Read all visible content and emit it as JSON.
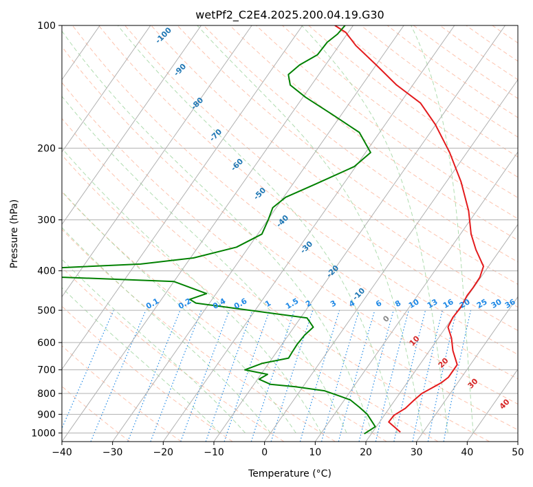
{
  "chart_data": {
    "type": "line",
    "title": "wetPf2_C2E4.2025.200.04.19.G30",
    "xlabel": "Temperature (°C)",
    "ylabel": "Pressure (hPa)",
    "xlim": [
      -40,
      50
    ],
    "ylim": [
      1050,
      100
    ],
    "y_scale": "log",
    "grid": true,
    "x_ticks": [
      "−40",
      "−30",
      "−20",
      "−10",
      "0",
      "10",
      "20",
      "30",
      "40",
      "50"
    ],
    "y_ticks": [
      "100",
      "200",
      "300",
      "400",
      "500",
      "600",
      "700",
      "800",
      "900",
      "1000"
    ],
    "series": [
      {
        "id": "temperature",
        "color": "#e31a1c",
        "points": [
          {
            "t": 25.5,
            "p": 995
          },
          {
            "t": 21.8,
            "p": 940
          },
          {
            "t": 21.9,
            "p": 905
          },
          {
            "t": 23.2,
            "p": 870
          },
          {
            "t": 23.8,
            "p": 830
          },
          {
            "t": 24.4,
            "p": 800
          },
          {
            "t": 25.4,
            "p": 780
          },
          {
            "t": 26.8,
            "p": 752
          },
          {
            "t": 27.4,
            "p": 730
          },
          {
            "t": 27.4,
            "p": 705
          },
          {
            "t": 27.4,
            "p": 680
          },
          {
            "t": 24.6,
            "p": 628
          },
          {
            "t": 22.6,
            "p": 585
          },
          {
            "t": 20.4,
            "p": 550
          },
          {
            "t": 20.0,
            "p": 520
          },
          {
            "t": 20.2,
            "p": 490
          },
          {
            "t": 19.8,
            "p": 460
          },
          {
            "t": 19.9,
            "p": 440
          },
          {
            "t": 19.8,
            "p": 415
          },
          {
            "t": 19.0,
            "p": 390
          },
          {
            "t": 15.2,
            "p": 355
          },
          {
            "t": 12.1,
            "p": 325
          },
          {
            "t": 8.4,
            "p": 285
          },
          {
            "t": 2.9,
            "p": 242
          },
          {
            "t": -3.4,
            "p": 205
          },
          {
            "t": -10.1,
            "p": 175
          },
          {
            "t": -16.0,
            "p": 155
          },
          {
            "t": -23.2,
            "p": 140
          },
          {
            "t": -30.0,
            "p": 125
          },
          {
            "t": -36.7,
            "p": 112
          },
          {
            "t": -40.5,
            "p": 104
          },
          {
            "t": -43.6,
            "p": 100
          }
        ]
      },
      {
        "id": "dewpoint",
        "color": "#008000",
        "points": [
          {
            "t": 18.6,
            "p": 1005
          },
          {
            "t": 19.8,
            "p": 965
          },
          {
            "t": 16.5,
            "p": 900
          },
          {
            "t": 14.0,
            "p": 865
          },
          {
            "t": 11.2,
            "p": 830
          },
          {
            "t": 8.6,
            "p": 812
          },
          {
            "t": 4.8,
            "p": 788
          },
          {
            "t": -1.5,
            "p": 770
          },
          {
            "t": -6.7,
            "p": 760
          },
          {
            "t": -9.7,
            "p": 738
          },
          {
            "t": -8.7,
            "p": 718
          },
          {
            "t": -13.8,
            "p": 700
          },
          {
            "t": -11.3,
            "p": 675
          },
          {
            "t": -6.8,
            "p": 655
          },
          {
            "t": -6.9,
            "p": 635
          },
          {
            "t": -7.0,
            "p": 605
          },
          {
            "t": -6.8,
            "p": 575
          },
          {
            "t": -6.2,
            "p": 550
          },
          {
            "t": -8.7,
            "p": 522
          },
          {
            "t": -32.7,
            "p": 480
          },
          {
            "t": -34.4,
            "p": 470
          },
          {
            "t": -31.9,
            "p": 455
          },
          {
            "t": -40.0,
            "p": 425
          },
          {
            "t": -62.0,
            "p": 415
          },
          {
            "t": -77.0,
            "p": 412
          },
          {
            "t": -68.0,
            "p": 395
          },
          {
            "t": -49.0,
            "p": 385
          },
          {
            "t": -39.4,
            "p": 372
          },
          {
            "t": -32.4,
            "p": 350
          },
          {
            "t": -29.2,
            "p": 325
          },
          {
            "t": -29.9,
            "p": 300
          },
          {
            "t": -30.7,
            "p": 280
          },
          {
            "t": -29.6,
            "p": 264
          },
          {
            "t": -25.5,
            "p": 245
          },
          {
            "t": -20.3,
            "p": 222
          },
          {
            "t": -19.0,
            "p": 205
          },
          {
            "t": -24.0,
            "p": 183
          },
          {
            "t": -32.0,
            "p": 165
          },
          {
            "t": -39.5,
            "p": 150
          },
          {
            "t": -44.2,
            "p": 140
          },
          {
            "t": -46.0,
            "p": 132
          },
          {
            "t": -45.1,
            "p": 125
          },
          {
            "t": -43.0,
            "p": 118
          },
          {
            "t": -42.8,
            "p": 110
          },
          {
            "t": -41.9,
            "p": 105
          },
          {
            "t": -41.6,
            "p": 100
          }
        ]
      }
    ],
    "isotherm_labels": [
      "-100",
      "-90",
      "-80",
      "-70",
      "-60",
      "-50",
      "-40",
      "-30",
      "-20",
      "-10",
      "0",
      "10",
      "20",
      "30",
      "40"
    ],
    "mixing_ratio_labels": [
      "0.1",
      "0.2",
      "0.4",
      "0.6",
      "1",
      "1.5",
      "2",
      "3",
      "4",
      "6",
      "8",
      "10",
      "13",
      "16",
      "20",
      "25",
      "30",
      "36"
    ],
    "colors": {
      "isotherm_neg": "#1f77b4",
      "isotherm_pos": "#d62728",
      "isotherm_zero": "#888888",
      "mixing_ratio": "#1e88e5",
      "dry_adiabat": "#fcaf93",
      "moist_adiabat": "#9bd39b",
      "saturation_curve": "#d8c2a4",
      "grid": "#b0b0b0"
    }
  }
}
